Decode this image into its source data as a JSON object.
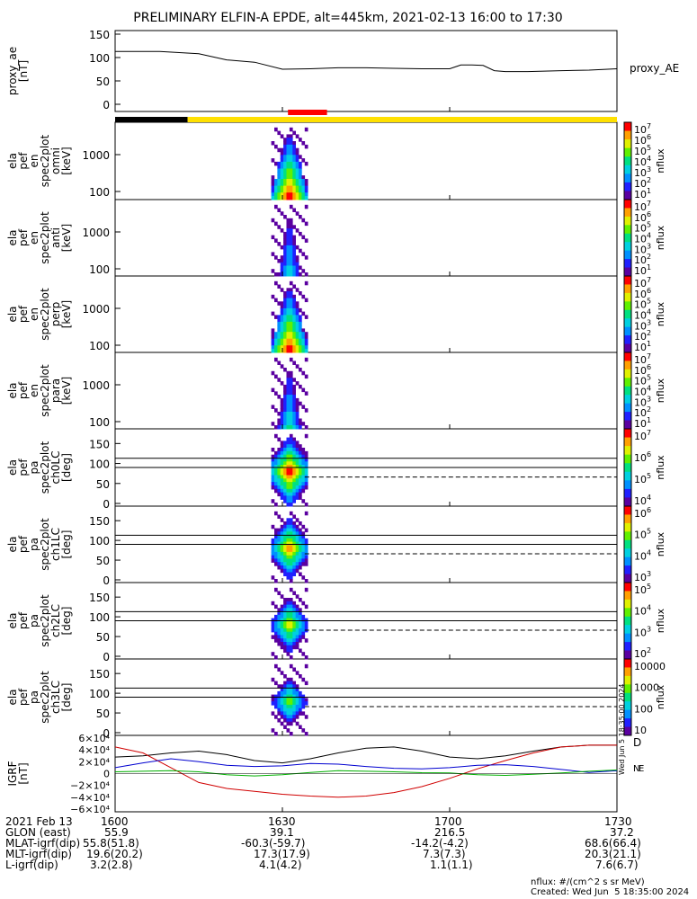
{
  "title": "PRELIMINARY ELFIN-A EPDE, alt=445km, 2021-02-13 16:00 to 17:30",
  "panels": [
    {
      "label_lines": [
        "proxy_ae",
        "[nT]"
      ],
      "right_label": "proxy_AE",
      "yticks": [
        "150",
        "100",
        "50",
        "0"
      ]
    },
    {
      "label_lines": [
        "ela",
        "pef",
        "en",
        "spec2plot",
        "omni",
        "[keV]"
      ],
      "yticks": [
        "1000",
        "100"
      ],
      "cbar_label": "nflux",
      "cbar_ticks": [
        "10",
        "10",
        "10",
        "10",
        "10",
        "10",
        "10"
      ],
      "cbar_exps": [
        "7",
        "6",
        "5",
        "4",
        "3",
        "2",
        "1"
      ]
    },
    {
      "label_lines": [
        "ela",
        "pef",
        "en",
        "spec2plot",
        "anti",
        "[keV]"
      ],
      "yticks": [
        "1000",
        "100"
      ],
      "cbar_label": "nflux",
      "cbar_ticks": [
        "10",
        "10",
        "10",
        "10",
        "10",
        "10",
        "10"
      ],
      "cbar_exps": [
        "7",
        "6",
        "5",
        "4",
        "3",
        "2",
        "1"
      ]
    },
    {
      "label_lines": [
        "ela",
        "pef",
        "en",
        "spec2plot",
        "perp",
        "[keV]"
      ],
      "yticks": [
        "1000",
        "100"
      ],
      "cbar_label": "nflux",
      "cbar_ticks": [
        "10",
        "10",
        "10",
        "10",
        "10",
        "10",
        "10"
      ],
      "cbar_exps": [
        "7",
        "6",
        "5",
        "4",
        "3",
        "2",
        "1"
      ]
    },
    {
      "label_lines": [
        "ela",
        "pef",
        "en",
        "spec2plot",
        "para",
        "[keV]"
      ],
      "yticks": [
        "1000",
        "100"
      ],
      "cbar_label": "nflux",
      "cbar_ticks": [
        "10",
        "10",
        "10",
        "10",
        "10",
        "10",
        "10"
      ],
      "cbar_exps": [
        "7",
        "6",
        "5",
        "4",
        "3",
        "2",
        "1"
      ]
    },
    {
      "label_lines": [
        "ela",
        "pef",
        "pa",
        "spec2plot",
        "ch0LC",
        "[deg]"
      ],
      "yticks": [
        "150",
        "100",
        "50",
        "0"
      ],
      "cbar_label": "nflux",
      "cbar_ticks": [
        "10",
        "10",
        "10",
        "10"
      ],
      "cbar_exps": [
        "7",
        "6",
        "5",
        "4"
      ]
    },
    {
      "label_lines": [
        "ela",
        "pef",
        "pa",
        "spec2plot",
        "ch1LC",
        "[deg]"
      ],
      "yticks": [
        "150",
        "100",
        "50",
        "0"
      ],
      "cbar_label": "nflux",
      "cbar_ticks": [
        "10",
        "10",
        "10",
        "10"
      ],
      "cbar_exps": [
        "6",
        "5",
        "4",
        "3"
      ]
    },
    {
      "label_lines": [
        "ela",
        "pef",
        "pa",
        "spec2plot",
        "ch2LC",
        "[deg]"
      ],
      "yticks": [
        "150",
        "100",
        "50",
        "0"
      ],
      "cbar_label": "nflux",
      "cbar_ticks": [
        "10",
        "10",
        "10",
        "10"
      ],
      "cbar_exps": [
        "5",
        "4",
        "3",
        "2"
      ]
    },
    {
      "label_lines": [
        "ela",
        "pef",
        "pa",
        "spec2plot",
        "ch3LC",
        "[deg]"
      ],
      "yticks": [
        "150",
        "100",
        "50",
        "0"
      ],
      "cbar_label": "nflux",
      "cbar_ticks": [
        "10000",
        "1000",
        "100",
        "10"
      ],
      "cbar_exps": [
        "",
        "",
        "",
        ""
      ]
    },
    {
      "label_lines": [
        "IGRF",
        "[nT]"
      ],
      "yticks": [
        "6×10⁴",
        "4×10⁴",
        "2×10⁴",
        "0",
        "−2×10⁴",
        "−4×10⁴",
        "−6×10⁴"
      ],
      "legend": [
        "D",
        "N",
        "E"
      ]
    }
  ],
  "chart_data": {
    "type": "line",
    "x_ticks": [
      "1600",
      "1630",
      "1700",
      "1730"
    ],
    "x_range_minutes": [
      0,
      90
    ],
    "proxy_ae": {
      "x_minutes": [
        0,
        8,
        15,
        20,
        25,
        30,
        35,
        40,
        45,
        50,
        55,
        60,
        62,
        64,
        66,
        68,
        70,
        72,
        74,
        80,
        85,
        90
      ],
      "y_nT": [
        113,
        113,
        108,
        95,
        90,
        75,
        76,
        78,
        78,
        77,
        76,
        76,
        84,
        84,
        83,
        72,
        70,
        70,
        70,
        72,
        73,
        76
      ]
    },
    "spectrogram_time_minutes": [
      28,
      34
    ],
    "pa_lines_deg": {
      "solid": [
        90,
        113
      ],
      "dashed": 66
    },
    "igrf": {
      "x_minutes": [
        0,
        5,
        10,
        15,
        20,
        25,
        30,
        35,
        40,
        45,
        50,
        55,
        60,
        65,
        70,
        75,
        80,
        85,
        90
      ],
      "D": [
        45000,
        35000,
        10000,
        -15000,
        -25000,
        -30000,
        -35000,
        -38000,
        -40000,
        -38000,
        -32000,
        -22000,
        -8000,
        8000,
        22000,
        35000,
        45000,
        48000,
        48000
      ],
      "N": [
        28000,
        30000,
        35000,
        38000,
        32000,
        22000,
        18000,
        25000,
        35000,
        43000,
        45000,
        38000,
        28000,
        25000,
        30000,
        38000,
        45000,
        48000,
        48000
      ],
      "E": [
        10000,
        18000,
        25000,
        20000,
        14000,
        12000,
        13000,
        17000,
        16000,
        12000,
        9000,
        8000,
        10000,
        14000,
        15000,
        12000,
        7000,
        2000,
        5000
      ],
      "green": [
        3000,
        4000,
        5000,
        3000,
        -2000,
        -4000,
        -2000,
        2000,
        5000,
        4000,
        3000,
        1500,
        1000,
        -2000,
        -3000,
        -1000,
        1000,
        4000,
        6000
      ]
    },
    "sat_bar": {
      "dark_end_minutes": 13,
      "red_start_minutes": 31,
      "red_end_minutes": 38
    }
  },
  "footer": {
    "rows": [
      [
        "2021 Feb 13",
        "1600",
        "1630",
        "1700",
        "1730"
      ],
      [
        "GLON (east)",
        "55.9",
        "39.1",
        "216.5",
        "37.2"
      ],
      [
        "MLAT-igrf(dip)",
        "55.8(51.8)",
        "-60.3(-59.7)",
        "-14.2(-4.2)",
        "68.6(66.4)"
      ],
      [
        "MLT-igrf(dip)",
        "19.6(20.2)",
        "17.3(17.9)",
        "7.3(7.3)",
        "20.3(21.1)"
      ],
      [
        "L-igrf(dip)",
        "3.2(2.8)",
        "4.1(4.2)",
        "1.1(1.1)",
        "7.6(6.7)"
      ]
    ],
    "units": "nflux: #/(cm^2 s sr MeV)",
    "created": "Created: Wed Jun  5 18:35:00 2024",
    "side_stamp": "Wed Jun  5 18:35:00 2024"
  },
  "colors": {
    "rainbow": [
      "#5a00a0",
      "#2020ff",
      "#0090ff",
      "#00d0e0",
      "#00e080",
      "#60f000",
      "#e0f000",
      "#ffa000",
      "#ff0000"
    ],
    "bar_dark": "#000000",
    "bar_yellow": "#ffe000",
    "bar_red": "#ff0000",
    "D": "#d00000",
    "N": "#000000",
    "E": "#0000d0",
    "green": "#00b000"
  }
}
